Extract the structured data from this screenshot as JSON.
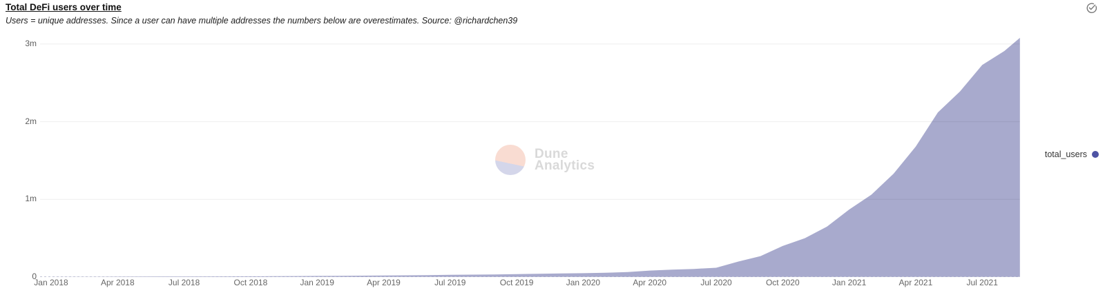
{
  "header": {
    "title": "Total DeFi users over time",
    "subtitle": "Users = unique addresses. Since a user can have multiple addresses the numbers below are overestimates. Source: @richardchen39"
  },
  "status": {
    "icon": "check-circle",
    "color": "#767676"
  },
  "watermark": {
    "line1": "Dune",
    "line2": "Analytics",
    "logo_top_color": "#f9dcd2",
    "logo_bottom_color": "#d4d6ea",
    "text_color": "#d9d9d9"
  },
  "legend": {
    "label": "total_users",
    "dot_color": "#4e53a4",
    "position": "right"
  },
  "chart_data": {
    "type": "area",
    "title": "Total DeFi users over time",
    "series_name": "total_users",
    "x_unit": "months since Jan 2018",
    "x_months": [
      0,
      1,
      2,
      3,
      4,
      5,
      6,
      7,
      8,
      9,
      10,
      11,
      12,
      13,
      14,
      15,
      16,
      17,
      18,
      19,
      20,
      21,
      22,
      23,
      24,
      25,
      26,
      27,
      28,
      29,
      30,
      31,
      32,
      33,
      34,
      35,
      36,
      37,
      38,
      39,
      40,
      41,
      42,
      43,
      43.7
    ],
    "values_millions": [
      0.001,
      0.002,
      0.003,
      0.004,
      0.005,
      0.006,
      0.007,
      0.008,
      0.009,
      0.01,
      0.011,
      0.012,
      0.014,
      0.016,
      0.018,
      0.02,
      0.022,
      0.025,
      0.028,
      0.031,
      0.034,
      0.038,
      0.042,
      0.046,
      0.05,
      0.056,
      0.064,
      0.083,
      0.095,
      0.105,
      0.12,
      0.2,
      0.27,
      0.4,
      0.5,
      0.65,
      0.87,
      1.06,
      1.33,
      1.68,
      2.12,
      2.39,
      2.73,
      2.91,
      3.08
    ],
    "x_tick_labels": [
      "Jan 2018",
      "Apr 2018",
      "Jul 2018",
      "Oct 2018",
      "Jan 2019",
      "Apr 2019",
      "Jul 2019",
      "Oct 2019",
      "Jan 2020",
      "Apr 2020",
      "Jul 2020",
      "Oct 2020",
      "Jan 2021",
      "Apr 2021",
      "Jul 2021"
    ],
    "x_tick_interval_months": 3,
    "y_ticks": [
      {
        "label": "0",
        "value": 0
      },
      {
        "label": "1m",
        "value": 1
      },
      {
        "label": "2m",
        "value": 2
      },
      {
        "label": "3m",
        "value": 3
      }
    ],
    "ylim_millions": [
      0,
      3.16
    ],
    "area_color": "#a8aacd",
    "gridline_color": "rgba(0,0,0,0.065)",
    "zero_line_color": "#c2c3d6",
    "zero_line_style": "dashed",
    "grid": "horizontal-only",
    "legend_position": "right"
  }
}
